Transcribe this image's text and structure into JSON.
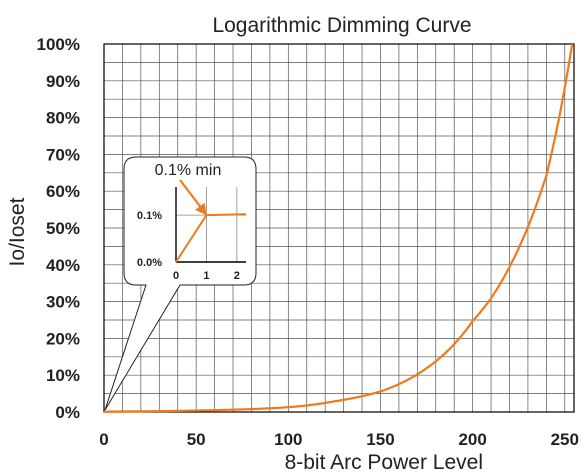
{
  "chart_data": {
    "type": "line",
    "title": "Logarithmic Dimming Curve",
    "xlabel": "8-bit Arc Power Level",
    "ylabel": "Io/Ioset",
    "xlim": [
      0,
      255
    ],
    "ylim": [
      0,
      100
    ],
    "x_ticks": [
      "0",
      "50",
      "100",
      "150",
      "200",
      "250"
    ],
    "y_ticks": [
      "0%",
      "10%",
      "20%",
      "30%",
      "40%",
      "50%",
      "60%",
      "70%",
      "80%",
      "90%",
      "100%"
    ],
    "grid": true,
    "series": [
      {
        "color": "#f07a1a",
        "x": [
          1,
          25,
          50,
          75,
          100,
          125,
          150,
          175,
          200,
          210,
          225,
          240,
          254
        ],
        "y": [
          0.1,
          0.2,
          0.4,
          0.7,
          1.3,
          2.9,
          5.6,
          11.9,
          24.7,
          30.9,
          44.5,
          64.3,
          100
        ]
      }
    ],
    "inset": {
      "annotation": "0.1% min",
      "x_ticks": [
        "0",
        "1",
        "2"
      ],
      "y_ticks": [
        "0.0%",
        "0.1%"
      ],
      "xlim": [
        0,
        2.3
      ],
      "ylim": [
        0,
        0.16
      ],
      "points": {
        "x": [
          0,
          1,
          2.3
        ],
        "y": [
          0,
          0.1,
          0.102
        ]
      }
    }
  }
}
